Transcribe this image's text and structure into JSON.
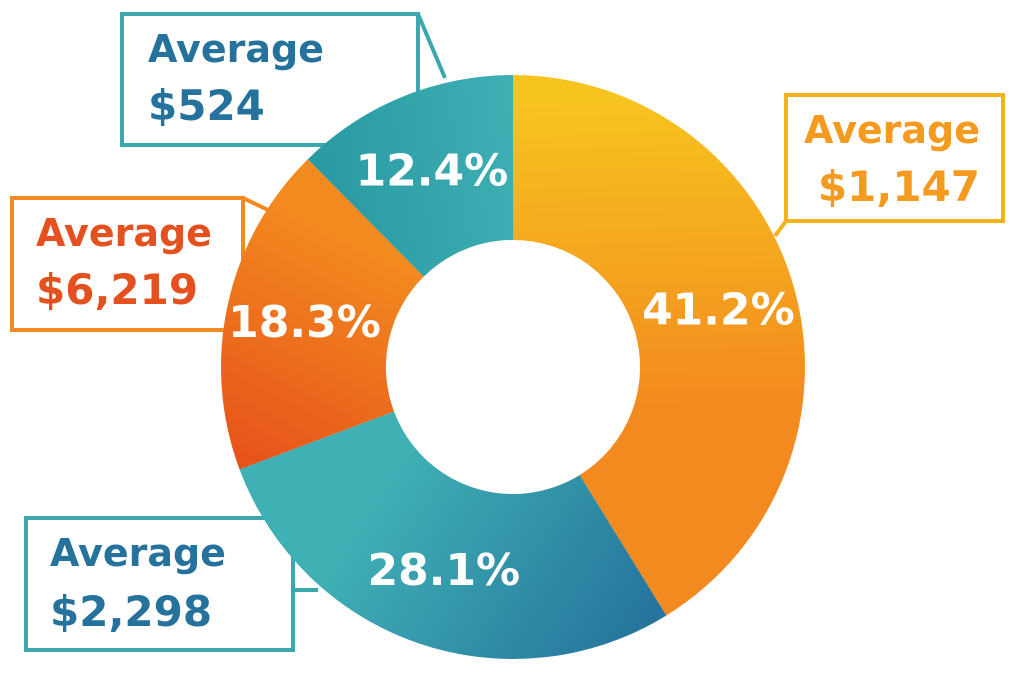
{
  "chart_data": {
    "type": "pie",
    "donut": true,
    "title": "",
    "slices": [
      {
        "label": "41.2%",
        "value": 41.2,
        "callout_title": "Average",
        "callout_value": "$1,147",
        "colors": [
          "#f7c41f",
          "#f38a1f"
        ],
        "text_color": "#f49a1f"
      },
      {
        "label": "28.1%",
        "value": 28.1,
        "callout_title": "Average",
        "callout_value": "$2,298",
        "colors": [
          "#25729c",
          "#3fb0b4"
        ],
        "text_color": "#25729c"
      },
      {
        "label": "18.3%",
        "value": 18.3,
        "callout_title": "Average",
        "callout_value": "$6,219",
        "colors": [
          "#e4461a",
          "#f38a1f"
        ],
        "text_color": "#e4501e"
      },
      {
        "label": "12.4%",
        "value": 12.4,
        "callout_title": "Average",
        "callout_value": "$524",
        "colors": [
          "#1e8f9a",
          "#3fb0b4"
        ],
        "text_color": "#25729c"
      }
    ]
  },
  "callout_border_colors": [
    "#f4b21d",
    "#3aa8ad",
    "#f38a1f",
    "#3aa8ad"
  ]
}
